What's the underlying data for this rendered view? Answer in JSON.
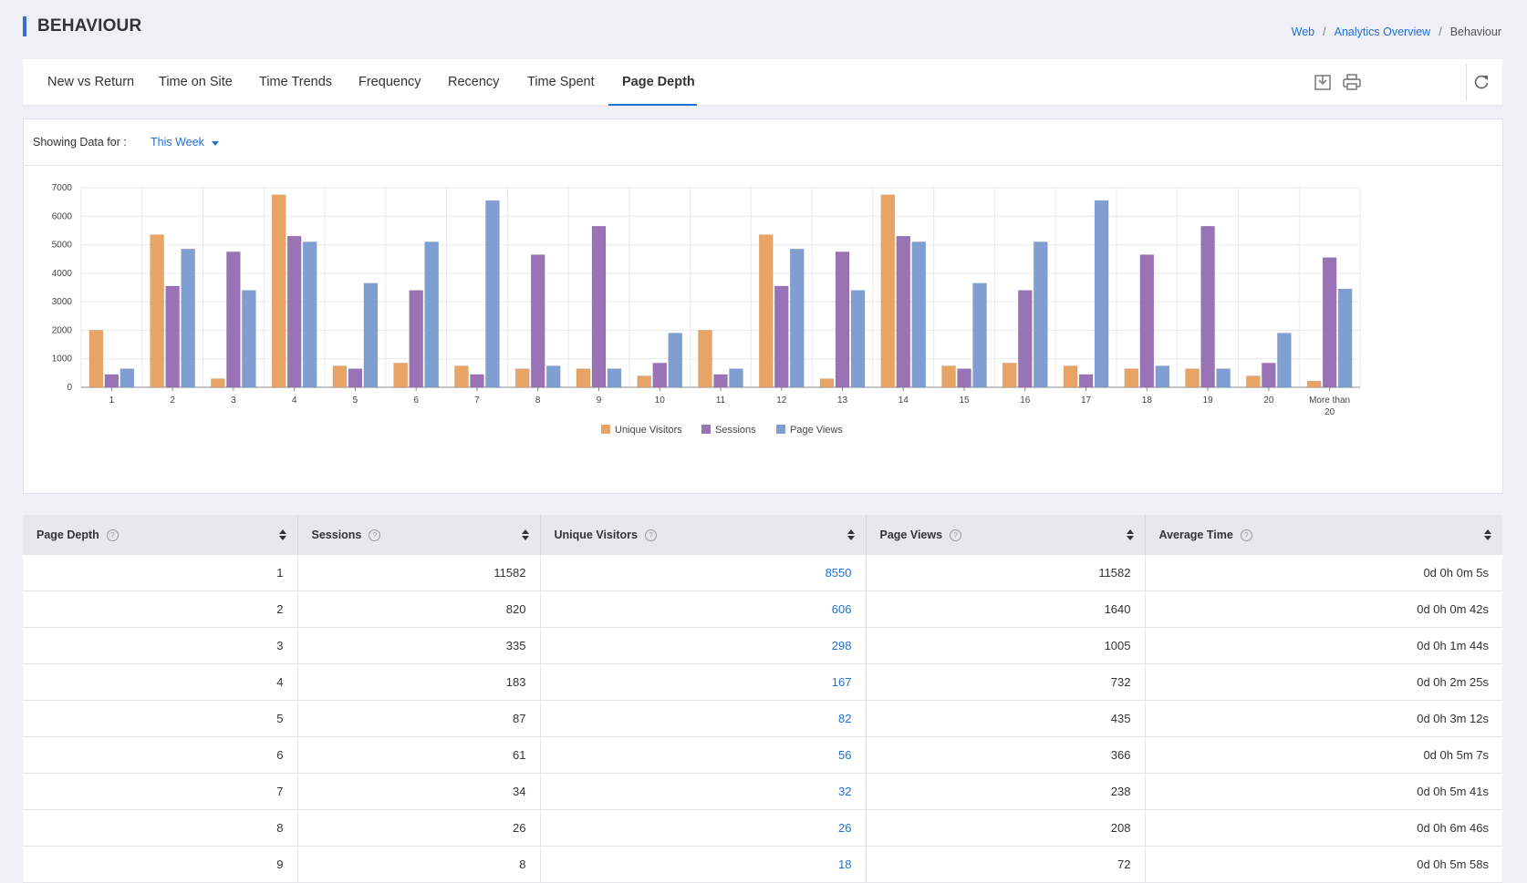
{
  "page": {
    "title": "BEHAVIOUR"
  },
  "breadcrumb": {
    "items": [
      "Web",
      "Analytics Overview",
      "Behaviour"
    ]
  },
  "tabs": [
    {
      "label": "New vs Return"
    },
    {
      "label": "Time on Site"
    },
    {
      "label": "Time Trends"
    },
    {
      "label": "Frequency"
    },
    {
      "label": "Recency"
    },
    {
      "label": "Time Spent"
    },
    {
      "label": "Page Depth",
      "active": true
    }
  ],
  "toolbar": {
    "icons": [
      "download-icon",
      "print-icon",
      "refresh-icon"
    ]
  },
  "filter": {
    "label": "Showing Data for :",
    "value": "This Week"
  },
  "colors": {
    "accent": "#1e6fd9",
    "unique_visitors": "#e8a464",
    "sessions": "#9a73b6",
    "page_views": "#7f9fd2"
  },
  "chart_data": {
    "type": "bar",
    "categories": [
      "1",
      "2",
      "3",
      "4",
      "5",
      "6",
      "7",
      "8",
      "9",
      "10",
      "11",
      "12",
      "13",
      "14",
      "15",
      "16",
      "17",
      "18",
      "19",
      "20",
      "More than 20"
    ],
    "series": [
      {
        "name": "Unique Visitors",
        "values": [
          2000,
          5350,
          300,
          6750,
          750,
          850,
          750,
          650,
          650,
          400,
          2000,
          5350,
          300,
          6750,
          750,
          850,
          750,
          650,
          650,
          400,
          220
        ]
      },
      {
        "name": "Sessions",
        "values": [
          450,
          3550,
          4750,
          5300,
          650,
          3400,
          450,
          4650,
          5650,
          850,
          450,
          3550,
          4750,
          5300,
          650,
          3400,
          450,
          4650,
          5650,
          850,
          4550
        ]
      },
      {
        "name": "Page Views",
        "values": [
          650,
          4850,
          3400,
          5100,
          3650,
          5100,
          6550,
          750,
          650,
          1900,
          650,
          4850,
          3400,
          5100,
          3650,
          5100,
          6550,
          750,
          650,
          1900,
          3450
        ]
      }
    ],
    "ylim": [
      0,
      7000
    ],
    "yticks": [
      "0",
      "1000",
      "2000",
      "3000",
      "4000",
      "5000",
      "6000",
      "7000"
    ],
    "grid": true,
    "legend": "bottom-center"
  },
  "table": {
    "columns": [
      "Page Depth",
      "Sessions",
      "Unique Visitors",
      "Page Views",
      "Average Time"
    ],
    "rows": [
      [
        "1",
        "11582",
        "8550",
        "11582",
        "0d 0h 0m 5s"
      ],
      [
        "2",
        "820",
        "606",
        "1640",
        "0d 0h 0m 42s"
      ],
      [
        "3",
        "335",
        "298",
        "1005",
        "0d 0h 1m 44s"
      ],
      [
        "4",
        "183",
        "167",
        "732",
        "0d 0h 2m 25s"
      ],
      [
        "5",
        "87",
        "82",
        "435",
        "0d 0h 3m 12s"
      ],
      [
        "6",
        "61",
        "56",
        "366",
        "0d 0h 5m 7s"
      ],
      [
        "7",
        "34",
        "32",
        "238",
        "0d 0h 5m 41s"
      ],
      [
        "8",
        "26",
        "26",
        "208",
        "0d 0h 6m 46s"
      ],
      [
        "9",
        "8",
        "18",
        "72",
        "0d 0h 5m 58s"
      ]
    ]
  }
}
